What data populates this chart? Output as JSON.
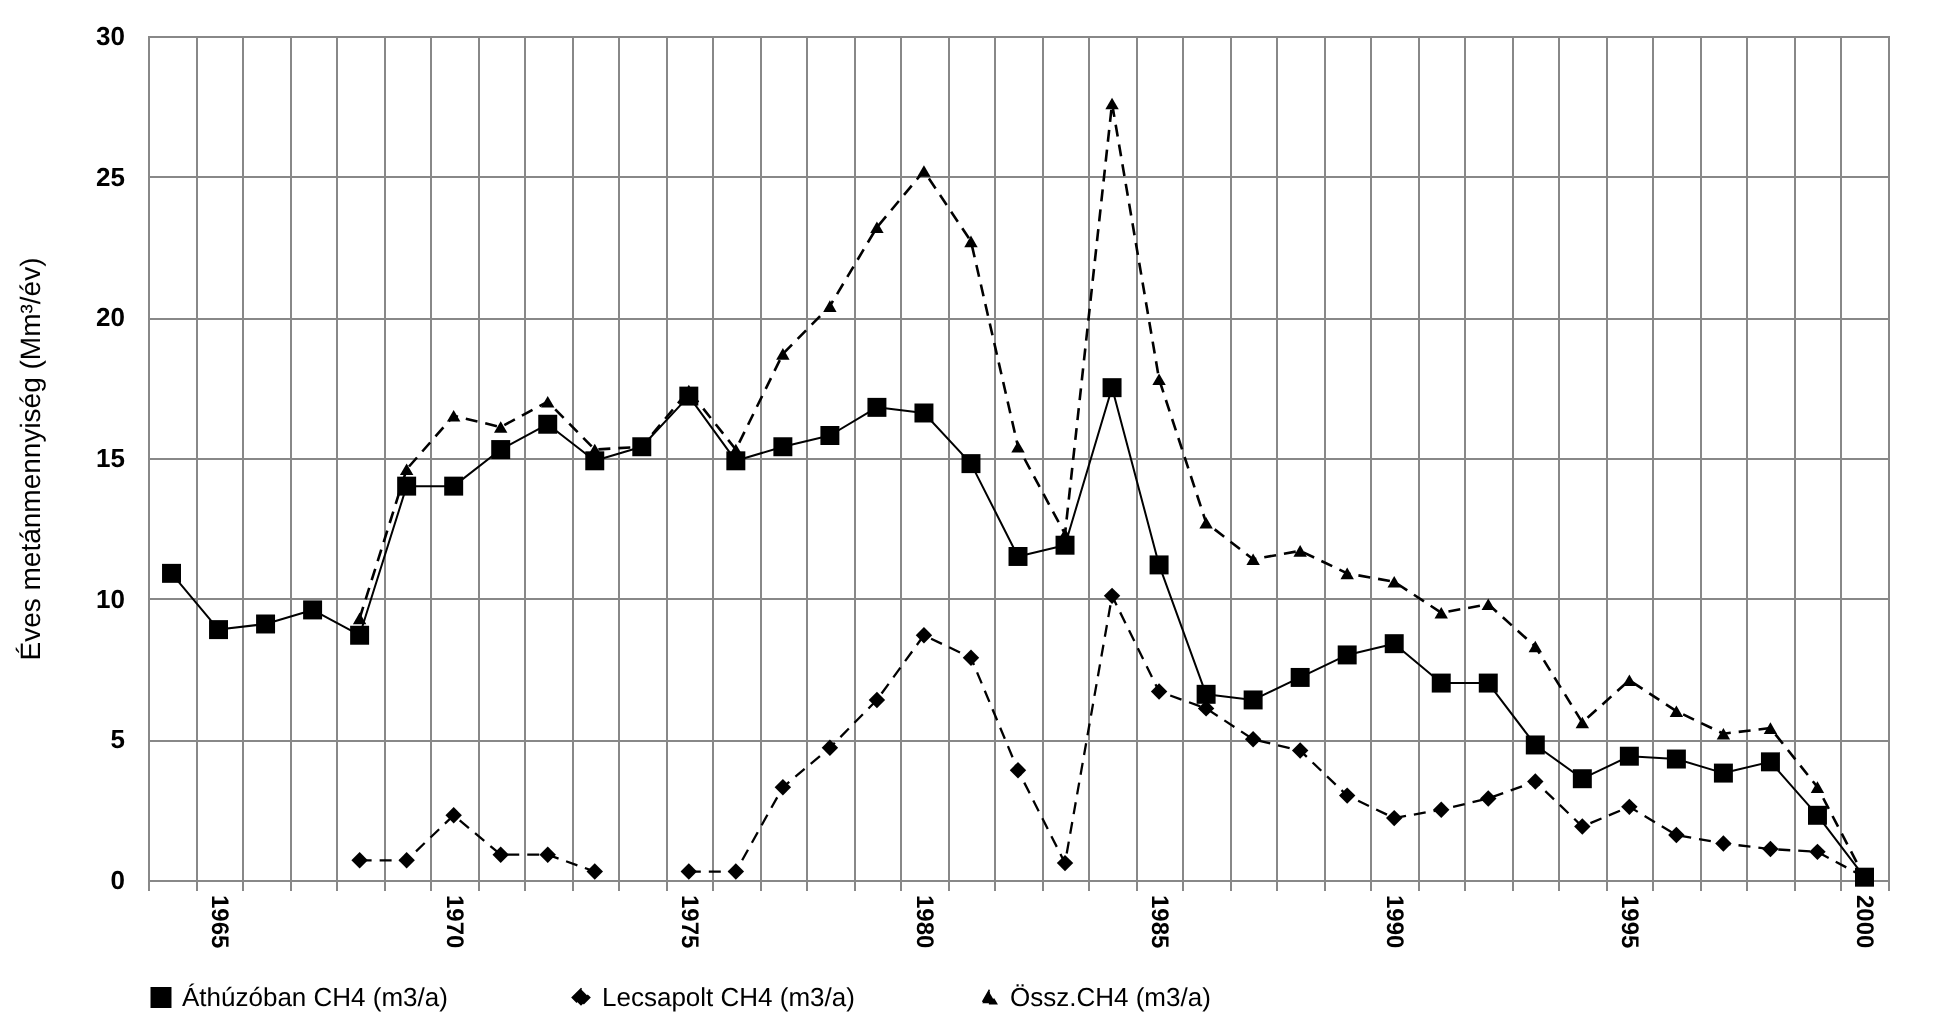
{
  "chart_data": {
    "type": "line",
    "ylabel": "Éves metánmennyiség (Mm³/év)",
    "categories": [
      null,
      "1965",
      null,
      null,
      null,
      null,
      "1970",
      null,
      null,
      null,
      null,
      "1975",
      null,
      null,
      null,
      null,
      "1980",
      null,
      null,
      null,
      null,
      "1985",
      null,
      null,
      null,
      null,
      "1990",
      null,
      null,
      null,
      null,
      "1995",
      null,
      null,
      null,
      null,
      "2000"
    ],
    "ylim": [
      0,
      30
    ],
    "yticks": [
      0,
      5,
      10,
      15,
      20,
      25,
      30
    ],
    "grid": true,
    "legend": "bottom",
    "series": [
      {
        "name": "Áthúzóban CH4 (m3/a)",
        "color": "#000000",
        "marker": "square",
        "line_style": "solid",
        "values": [
          10.9,
          8.9,
          9.1,
          9.6,
          8.7,
          14.0,
          14.0,
          15.3,
          16.2,
          14.9,
          15.4,
          17.2,
          14.9,
          15.4,
          15.8,
          16.8,
          16.6,
          14.8,
          11.5,
          11.9,
          17.5,
          11.2,
          6.6,
          6.4,
          7.2,
          8.0,
          8.4,
          7.0,
          7.0,
          4.8,
          3.6,
          4.4,
          4.3,
          3.8,
          4.2,
          2.3,
          0.1
        ]
      },
      {
        "name": "Lecsapolt CH4 (m3/a)",
        "color": "#000000",
        "marker": "diamond",
        "line_style": "dashed",
        "values": [
          null,
          null,
          null,
          null,
          0.7,
          0.7,
          2.3,
          0.9,
          0.9,
          0.3,
          null,
          0.3,
          0.3,
          3.3,
          4.7,
          6.4,
          8.7,
          7.9,
          3.9,
          0.6,
          10.1,
          6.7,
          6.1,
          5.0,
          4.6,
          3.0,
          2.2,
          2.5,
          2.9,
          3.5,
          1.9,
          2.6,
          1.6,
          1.3,
          1.1,
          1.0,
          0.1
        ]
      },
      {
        "name": "Össz.CH4 (m3/a)",
        "color": "#000000",
        "marker": "triangle",
        "line_style": "dashed",
        "values": [
          null,
          null,
          null,
          null,
          9.3,
          14.6,
          16.5,
          16.1,
          17.0,
          15.3,
          15.4,
          17.4,
          15.3,
          18.7,
          20.4,
          23.2,
          25.2,
          22.7,
          15.4,
          12.3,
          27.6,
          17.8,
          12.7,
          11.4,
          11.7,
          10.9,
          10.6,
          9.5,
          9.8,
          8.3,
          5.6,
          7.1,
          6.0,
          5.2,
          5.4,
          3.3,
          0.1
        ]
      }
    ]
  }
}
